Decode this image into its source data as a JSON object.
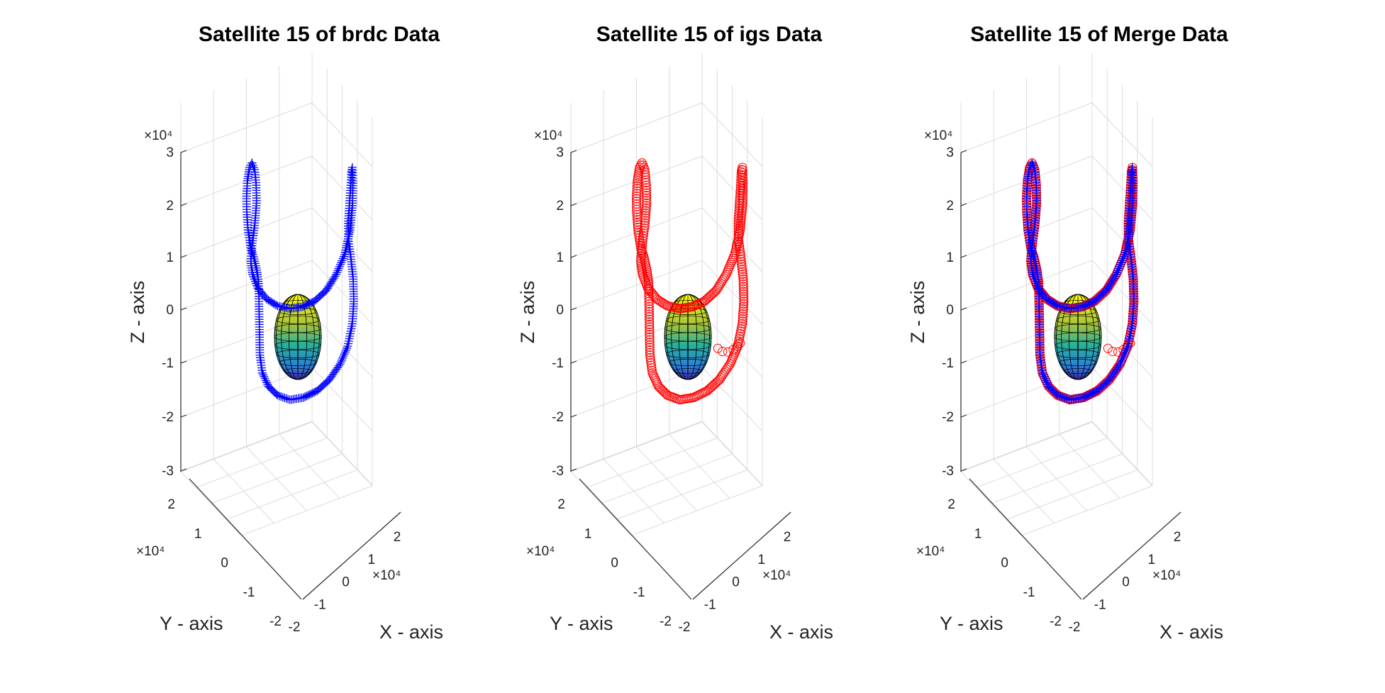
{
  "chart_data": [
    {
      "type": "scatter",
      "title": "Satellite 15 of brdc Data",
      "xlabel": "X - axis",
      "ylabel": "Y - axis",
      "zlabel": "Z - axis",
      "xlim": [
        -25000,
        25000
      ],
      "ylim": [
        -25000,
        25000
      ],
      "zlim": [
        -30000,
        30000
      ],
      "xticks": [
        "-2",
        "-1",
        "0",
        "1",
        "2"
      ],
      "yticks": [
        "-2",
        "-1",
        "0",
        "1",
        "2"
      ],
      "zticks": [
        "-3",
        "-2",
        "-1",
        "0",
        "1",
        "2",
        "3"
      ],
      "exponent": "×10⁴",
      "grid": true,
      "earth": {
        "shape": "ellipsoid",
        "semi_axes": [
          6378,
          6378,
          6357
        ]
      },
      "series": [
        {
          "marker": "+",
          "color": "#0000ff",
          "path": "orbit"
        }
      ]
    },
    {
      "type": "scatter",
      "title": "Satellite 15 of igs Data",
      "xlabel": "X - axis",
      "ylabel": "Y - axis",
      "zlabel": "Z - axis",
      "xlim": [
        -25000,
        25000
      ],
      "ylim": [
        -25000,
        25000
      ],
      "zlim": [
        -30000,
        30000
      ],
      "xticks": [
        "-2",
        "-1",
        "0",
        "1",
        "2"
      ],
      "yticks": [
        "-2",
        "-1",
        "0",
        "1",
        "2"
      ],
      "zticks": [
        "-3",
        "-2",
        "-1",
        "0",
        "1",
        "2",
        "3"
      ],
      "exponent": "×10⁴",
      "grid": true,
      "earth": {
        "shape": "ellipsoid",
        "semi_axes": [
          6378,
          6378,
          6357
        ]
      },
      "series": [
        {
          "marker": "o",
          "color": "#ff0000",
          "path": "orbit"
        },
        {
          "marker": "o",
          "color": "#ff0000",
          "path": "stray"
        }
      ]
    },
    {
      "type": "scatter",
      "title": "Satellite 15 of Merge Data",
      "xlabel": "X - axis",
      "ylabel": "Y - axis",
      "zlabel": "Z - axis",
      "xlim": [
        -25000,
        25000
      ],
      "ylim": [
        -25000,
        25000
      ],
      "zlim": [
        -30000,
        30000
      ],
      "xticks": [
        "-2",
        "-1",
        "0",
        "1",
        "2"
      ],
      "yticks": [
        "-2",
        "-1",
        "0",
        "1",
        "2"
      ],
      "zticks": [
        "-3",
        "-2",
        "-1",
        "0",
        "1",
        "2",
        "3"
      ],
      "exponent": "×10⁴",
      "grid": true,
      "earth": {
        "shape": "ellipsoid",
        "semi_axes": [
          6378,
          6378,
          6357
        ]
      },
      "series": [
        {
          "marker": "o",
          "color": "#ff0000",
          "path": "orbit"
        },
        {
          "marker": "o",
          "color": "#ff0000",
          "path": "stray"
        },
        {
          "marker": "+",
          "color": "#0000ff",
          "path": "orbit"
        }
      ]
    }
  ]
}
